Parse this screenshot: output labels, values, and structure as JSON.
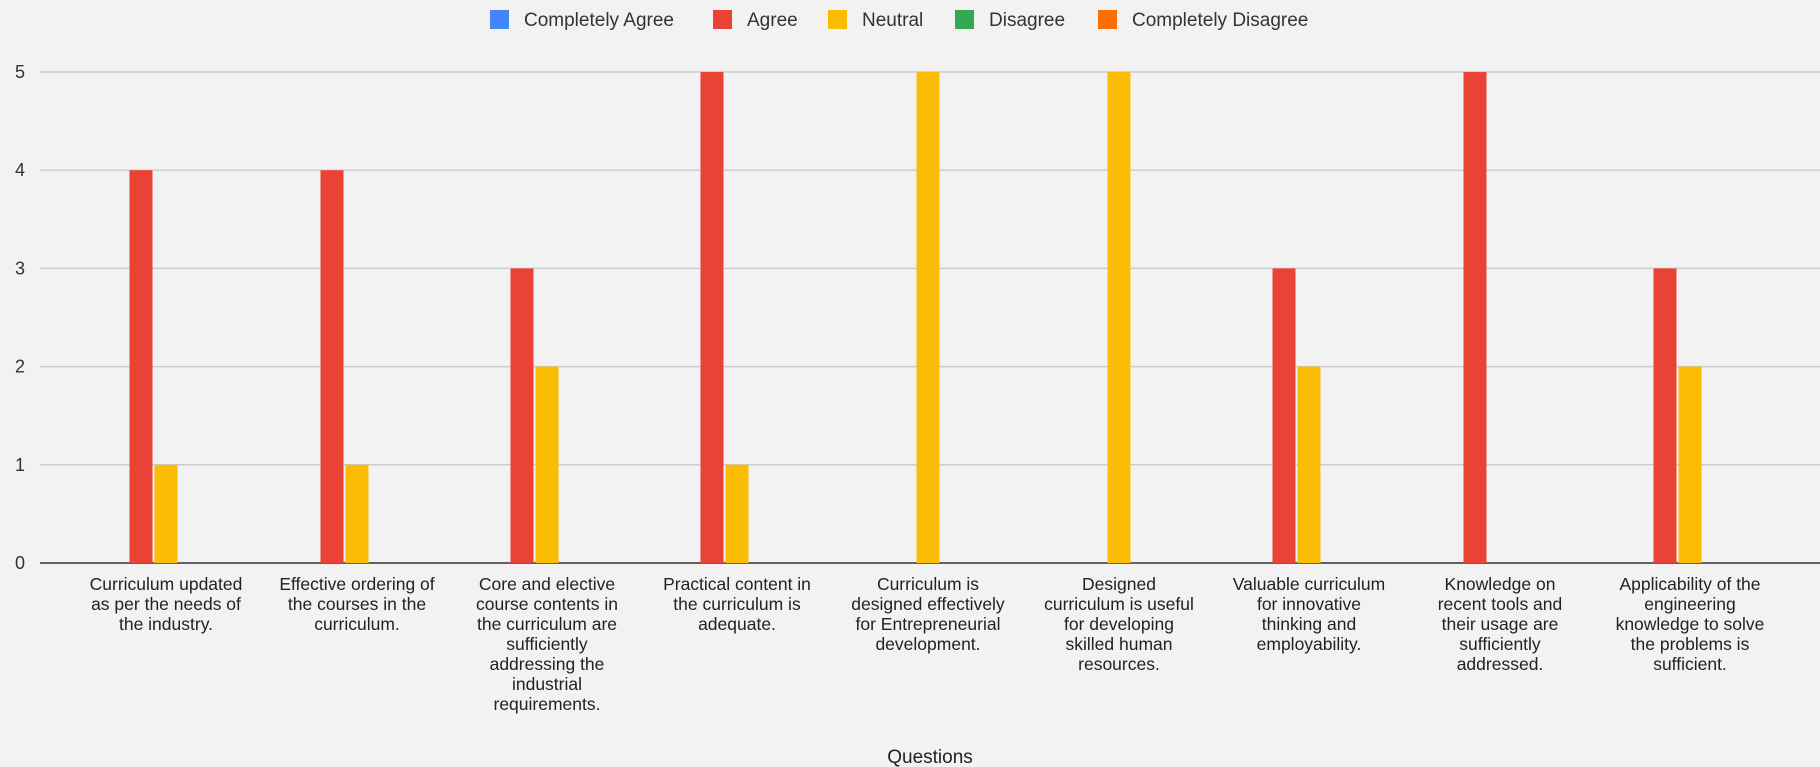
{
  "chart_data": {
    "type": "bar",
    "title": "",
    "xlabel": "Questions",
    "ylabel": "",
    "ylim": [
      0,
      5
    ],
    "yticks": [
      0,
      1,
      2,
      3,
      4,
      5
    ],
    "grid": true,
    "legend_position": "top",
    "categories": [
      "Curriculum updated as per the needs of the industry.",
      "Effective ordering of the courses in the curriculum.",
      "Core and elective course contents in the curriculum are sufficiently addressing the industrial requirements.",
      "Practical content in the curriculum is adequate.",
      "Curriculum is designed effectively for Entrepreneurial development.",
      "Designed curriculum is useful for developing skilled human resources.",
      "Valuable curriculum for innovative thinking and employability.",
      "Knowledge on recent tools and their usage are sufficiently addressed.",
      "Applicability of the engineering knowledge to solve the problems is sufficient."
    ],
    "category_lines": [
      [
        "Curriculum updated",
        "as per the needs of",
        "the industry."
      ],
      [
        "Effective ordering of",
        "the courses in the",
        "curriculum."
      ],
      [
        "Core and elective",
        "course contents in",
        "the curriculum are",
        "sufficiently",
        "addressing the",
        "industrial",
        "requirements."
      ],
      [
        "Practical content in",
        "the curriculum is",
        "adequate."
      ],
      [
        "Curriculum is",
        "designed effectively",
        "for Entrepreneurial",
        "development."
      ],
      [
        "Designed",
        "curriculum is useful",
        "for developing",
        "skilled human",
        "resources."
      ],
      [
        "Valuable curriculum",
        "for innovative",
        "thinking and",
        "employability."
      ],
      [
        "Knowledge on",
        "recent tools and",
        "their usage are",
        "sufficiently",
        "addressed."
      ],
      [
        "Applicability of the",
        "engineering",
        "knowledge to solve",
        "the problems is",
        "sufficient."
      ]
    ],
    "series": [
      {
        "name": "Completely Agree",
        "color": "#4285f4",
        "values": [
          0,
          0,
          0,
          0,
          0,
          0,
          0,
          0,
          0
        ]
      },
      {
        "name": "Agree",
        "color": "#ea4335",
        "values": [
          4,
          4,
          3,
          5,
          0,
          0,
          3,
          5,
          3
        ]
      },
      {
        "name": "Neutral",
        "color": "#fbbc04",
        "values": [
          1,
          1,
          2,
          1,
          5,
          5,
          2,
          0,
          2
        ]
      },
      {
        "name": "Disagree",
        "color": "#34a853",
        "values": [
          0,
          0,
          0,
          0,
          0,
          0,
          0,
          0,
          0
        ]
      },
      {
        "name": "Completely  Disagree",
        "color": "#ff6d01",
        "values": [
          0,
          0,
          0,
          0,
          0,
          0,
          0,
          0,
          0
        ]
      }
    ]
  }
}
